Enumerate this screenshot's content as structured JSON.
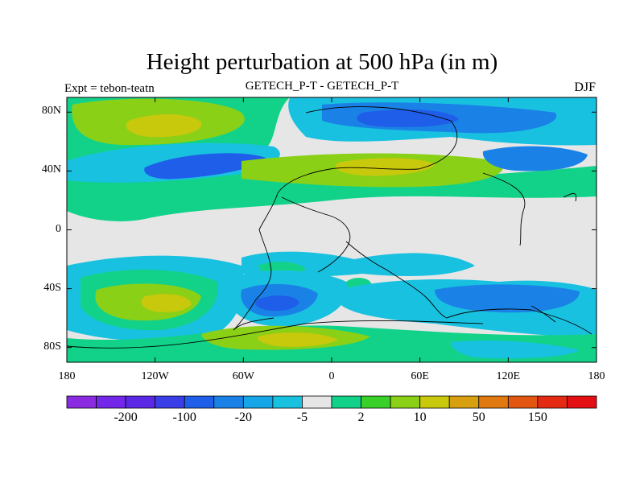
{
  "title": "Height perturbation at 500 hPa (in m)",
  "left_label": "Expt = tebon-teatn",
  "center_label": "GETECH_P-T - GETECH_P-T",
  "right_label": "DJF",
  "lat_ticks": [
    {
      "value": 80,
      "label": "80N"
    },
    {
      "value": 40,
      "label": "40N"
    },
    {
      "value": 0,
      "label": "0"
    },
    {
      "value": -40,
      "label": "40S"
    },
    {
      "value": -80,
      "label": "80S"
    }
  ],
  "lon_ticks": [
    {
      "value": -180,
      "label": "180"
    },
    {
      "value": -120,
      "label": "120W"
    },
    {
      "value": -60,
      "label": "60W"
    },
    {
      "value": 0,
      "label": "0"
    },
    {
      "value": 60,
      "label": "60E"
    },
    {
      "value": 120,
      "label": "120E"
    },
    {
      "value": 180,
      "label": "180"
    }
  ],
  "colorbar": {
    "colors": [
      "#8a2be2",
      "#7327e8",
      "#5b28e6",
      "#3a3ee6",
      "#1f5ee8",
      "#1a82e6",
      "#14a6e6",
      "#19c1e0",
      "#e6e6e6",
      "#12d28a",
      "#3ad02a",
      "#8ad017",
      "#c8c80c",
      "#d8a010",
      "#e07a10",
      "#e25612",
      "#e52a14",
      "#e40f12"
    ],
    "labels": [
      {
        "after_index": 1,
        "text": "-200"
      },
      {
        "after_index": 3,
        "text": "-100"
      },
      {
        "after_index": 5,
        "text": "-20"
      },
      {
        "after_index": 7,
        "text": "-5"
      },
      {
        "after_index": 9,
        "text": "2"
      },
      {
        "after_index": 11,
        "text": "10"
      },
      {
        "after_index": 13,
        "text": "50"
      },
      {
        "after_index": 15,
        "text": "150"
      }
    ]
  },
  "chart_data": {
    "type": "heatmap",
    "title": "Height perturbation at 500 hPa (in m)",
    "subtitle": "GETECH_P-T - GETECH_P-T",
    "season": "DJF",
    "experiment": "Expt = tebon-teatn",
    "xlim": [
      -180,
      180
    ],
    "ylim": [
      -90,
      90
    ],
    "units": "m",
    "levels": [
      -250,
      -200,
      -150,
      -100,
      -50,
      -20,
      -10,
      -5,
      -2,
      2,
      5,
      10,
      20,
      50,
      100,
      150,
      200
    ],
    "regions": [
      {
        "lat": [
          20,
          40
        ],
        "lon": [
          -180,
          180
        ],
        "level": "2 to 5",
        "color": "#12d28a"
      },
      {
        "lat": [
          40,
          90
        ],
        "lon": [
          -180,
          -50
        ],
        "level": "2 to 5",
        "color": "#12d28a"
      },
      {
        "lat": [
          62,
          86
        ],
        "lon": [
          -170,
          -70
        ],
        "level": "10 to 20",
        "color": "#8ad017"
      },
      {
        "lat": [
          68,
          80
        ],
        "lon": [
          -135,
          -105
        ],
        "level": "20 to 50",
        "color": "#c8c80c"
      },
      {
        "lat": [
          35,
          55
        ],
        "lon": [
          -165,
          -95
        ],
        "level": "-5 to -10",
        "color": "#19c1e0"
      },
      {
        "lat": [
          38,
          52
        ],
        "lon": [
          -140,
          -100
        ],
        "level": "-20 to -50",
        "color": "#1f5ee8"
      },
      {
        "lat": [
          35,
          60
        ],
        "lon": [
          -40,
          100
        ],
        "level": "10 to 20",
        "color": "#8ad017"
      },
      {
        "lat": [
          38,
          52
        ],
        "lon": [
          10,
          60
        ],
        "level": "20 to 50",
        "color": "#c8c80c"
      },
      {
        "lat": [
          62,
          90
        ],
        "lon": [
          -20,
          180
        ],
        "level": "-5 to -10",
        "color": "#19c1e0"
      },
      {
        "lat": [
          68,
          86
        ],
        "lon": [
          0,
          120
        ],
        "level": "-20 to -50",
        "color": "#1f5ee8"
      },
      {
        "lat": [
          -60,
          -25
        ],
        "lon": [
          -180,
          -75
        ],
        "level": "-5 to -10",
        "color": "#19c1e0"
      },
      {
        "lat": [
          -48,
          -36
        ],
        "lon": [
          -150,
          -105
        ],
        "level": "10 to 20",
        "color": "#8ad017"
      },
      {
        "lat": [
          -75,
          -40
        ],
        "lon": [
          -60,
          0
        ],
        "level": "-10 to -20",
        "color": "#1a82e6"
      },
      {
        "lat": [
          -88,
          -72
        ],
        "lon": [
          -180,
          180
        ],
        "level": "2 to 5",
        "color": "#12d28a"
      },
      {
        "lat": [
          -85,
          -75
        ],
        "lon": [
          -70,
          0
        ],
        "level": "20 to 50",
        "color": "#c8c80c"
      },
      {
        "lat": [
          -70,
          -35
        ],
        "lon": [
          80,
          180
        ],
        "level": "-5 to -10",
        "color": "#19c1e0"
      }
    ]
  }
}
